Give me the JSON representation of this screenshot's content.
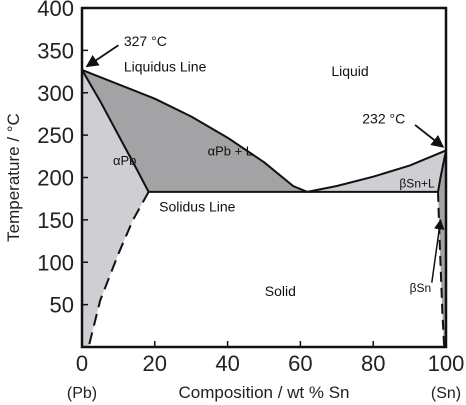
{
  "chart_data": {
    "type": "phase-diagram",
    "title": "",
    "xlabel": "Composition / wt % Sn",
    "ylabel": "Temperature / °C",
    "xlim": [
      0,
      100
    ],
    "ylim": [
      0,
      400
    ],
    "x_ticks": [
      "0",
      "20",
      "40",
      "60",
      "80",
      "100"
    ],
    "y_ticks": [
      "50",
      "100",
      "150",
      "200",
      "250",
      "300",
      "350",
      "400"
    ],
    "x_end_labels": {
      "left": "(Pb)",
      "right": "(Sn)"
    },
    "colors": {
      "dark_region": "#a3a3a6",
      "light_region": "#cfcfd3",
      "line": "#111111"
    },
    "melting_points": {
      "Pb": 327,
      "Sn": 232
    },
    "eutectic": {
      "composition": 61.9,
      "temperature": 183
    },
    "curves": {
      "liquidus_left": [
        [
          0,
          327
        ],
        [
          10,
          310
        ],
        [
          20,
          293
        ],
        [
          30,
          272
        ],
        [
          40,
          247
        ],
        [
          50,
          218
        ],
        [
          58,
          190
        ],
        [
          61.9,
          183
        ]
      ],
      "liquidus_right": [
        [
          61.9,
          183
        ],
        [
          70,
          190
        ],
        [
          80,
          201
        ],
        [
          90,
          214
        ],
        [
          100,
          232
        ]
      ],
      "solidus_alpha": [
        [
          0,
          327
        ],
        [
          5,
          290
        ],
        [
          10,
          250
        ],
        [
          15,
          210
        ],
        [
          18.3,
          183
        ]
      ],
      "solvus_alpha": [
        [
          18.3,
          183
        ],
        [
          14,
          150
        ],
        [
          10,
          110
        ],
        [
          5,
          55
        ],
        [
          1.8,
          0
        ]
      ],
      "solidus_beta": [
        [
          100,
          232
        ],
        [
          98.5,
          200
        ],
        [
          97.8,
          183
        ]
      ],
      "solvus_beta": [
        [
          97.8,
          183
        ],
        [
          98.3,
          120
        ],
        [
          99,
          40
        ],
        [
          99.5,
          0
        ]
      ]
    },
    "labels": {
      "pb_melt": "327 °C",
      "sn_melt": "232 °C",
      "liquidus": "Liquidus Line",
      "solidus": "Solidus Line",
      "liquid": "Liquid",
      "alpha_pb": "αPb",
      "alpha_liquid": "αPb + L",
      "beta_liquid": "βSn+L",
      "beta_sn": "βSn",
      "solid": "Solid"
    }
  }
}
